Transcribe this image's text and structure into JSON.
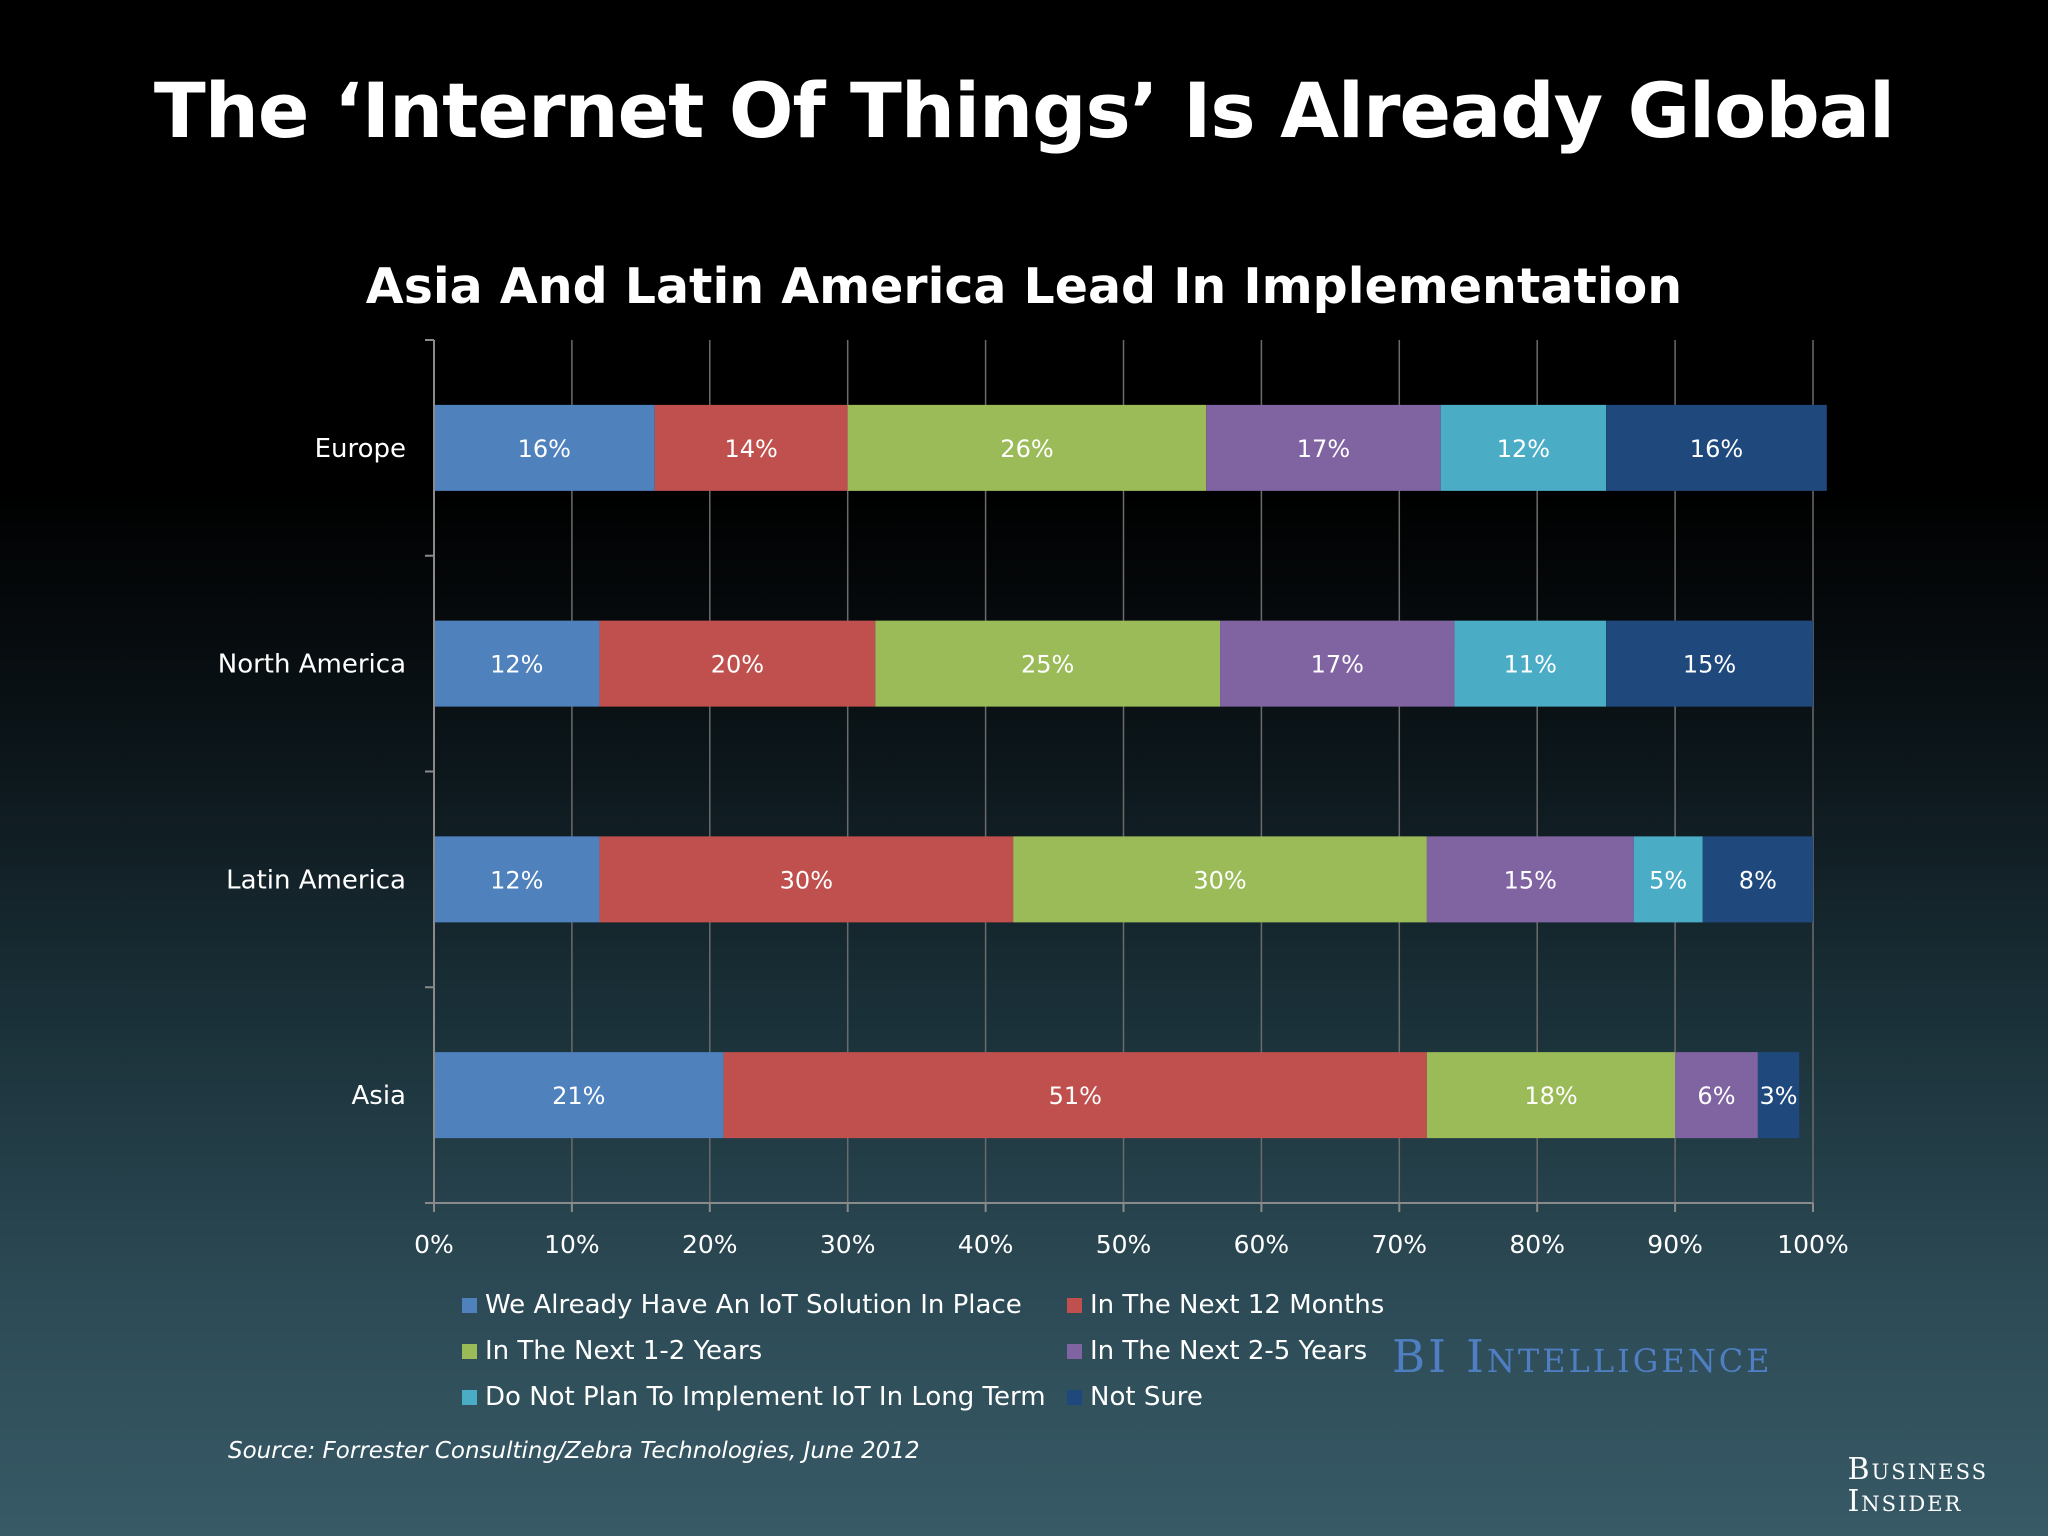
{
  "title": "The ‘Internet Of Things’ Is Already Global",
  "legend_title_hidden": "",
  "source": "Source: Forrester Consulting/Zebra Technologies, June 2012",
  "bi_intelligence": "BI Intelligence",
  "brand": {
    "line1": "Business",
    "line2": "Insider"
  },
  "chart_data": {
    "type": "bar",
    "orientation": "horizontal",
    "stacked": true,
    "title": "Asia And Latin America Lead In Implementation",
    "categories": [
      "Europe",
      "North America",
      "Latin America",
      "Asia"
    ],
    "xlabel": "",
    "ylabel": "",
    "xlim": [
      0,
      100
    ],
    "x_ticks": [
      "0%",
      "10%",
      "20%",
      "30%",
      "40%",
      "50%",
      "60%",
      "70%",
      "80%",
      "90%",
      "100%"
    ],
    "grid": true,
    "legend_position": "bottom",
    "series": [
      {
        "name": "We Already Have An IoT Solution In Place",
        "color": "#4f81bd",
        "values": [
          16,
          12,
          12,
          21
        ]
      },
      {
        "name": "In The Next 12 Months",
        "color": "#c0504d",
        "values": [
          14,
          20,
          30,
          51
        ]
      },
      {
        "name": "In The Next 1-2 Years",
        "color": "#9bbb59",
        "values": [
          26,
          25,
          30,
          18
        ]
      },
      {
        "name": "In The Next 2-5 Years",
        "color": "#8064a2",
        "values": [
          17,
          17,
          15,
          6
        ]
      },
      {
        "name": "Do Not Plan To Implement IoT In Long Term",
        "color": "#4bacc6",
        "values": [
          12,
          11,
          5,
          0
        ]
      },
      {
        "name": "Not Sure",
        "color": "#1f497d",
        "values": [
          16,
          15,
          8,
          3
        ]
      }
    ],
    "value_labels": [
      [
        "16%",
        "14%",
        "26%",
        "17%",
        "12%",
        "16%"
      ],
      [
        "12%",
        "20%",
        "25%",
        "17%",
        "11%",
        "15%"
      ],
      [
        "12%",
        "30%",
        "30%",
        "15%",
        "5%",
        "8%"
      ],
      [
        "21%",
        "51%",
        "18%",
        "6%",
        "",
        "3%"
      ]
    ]
  }
}
